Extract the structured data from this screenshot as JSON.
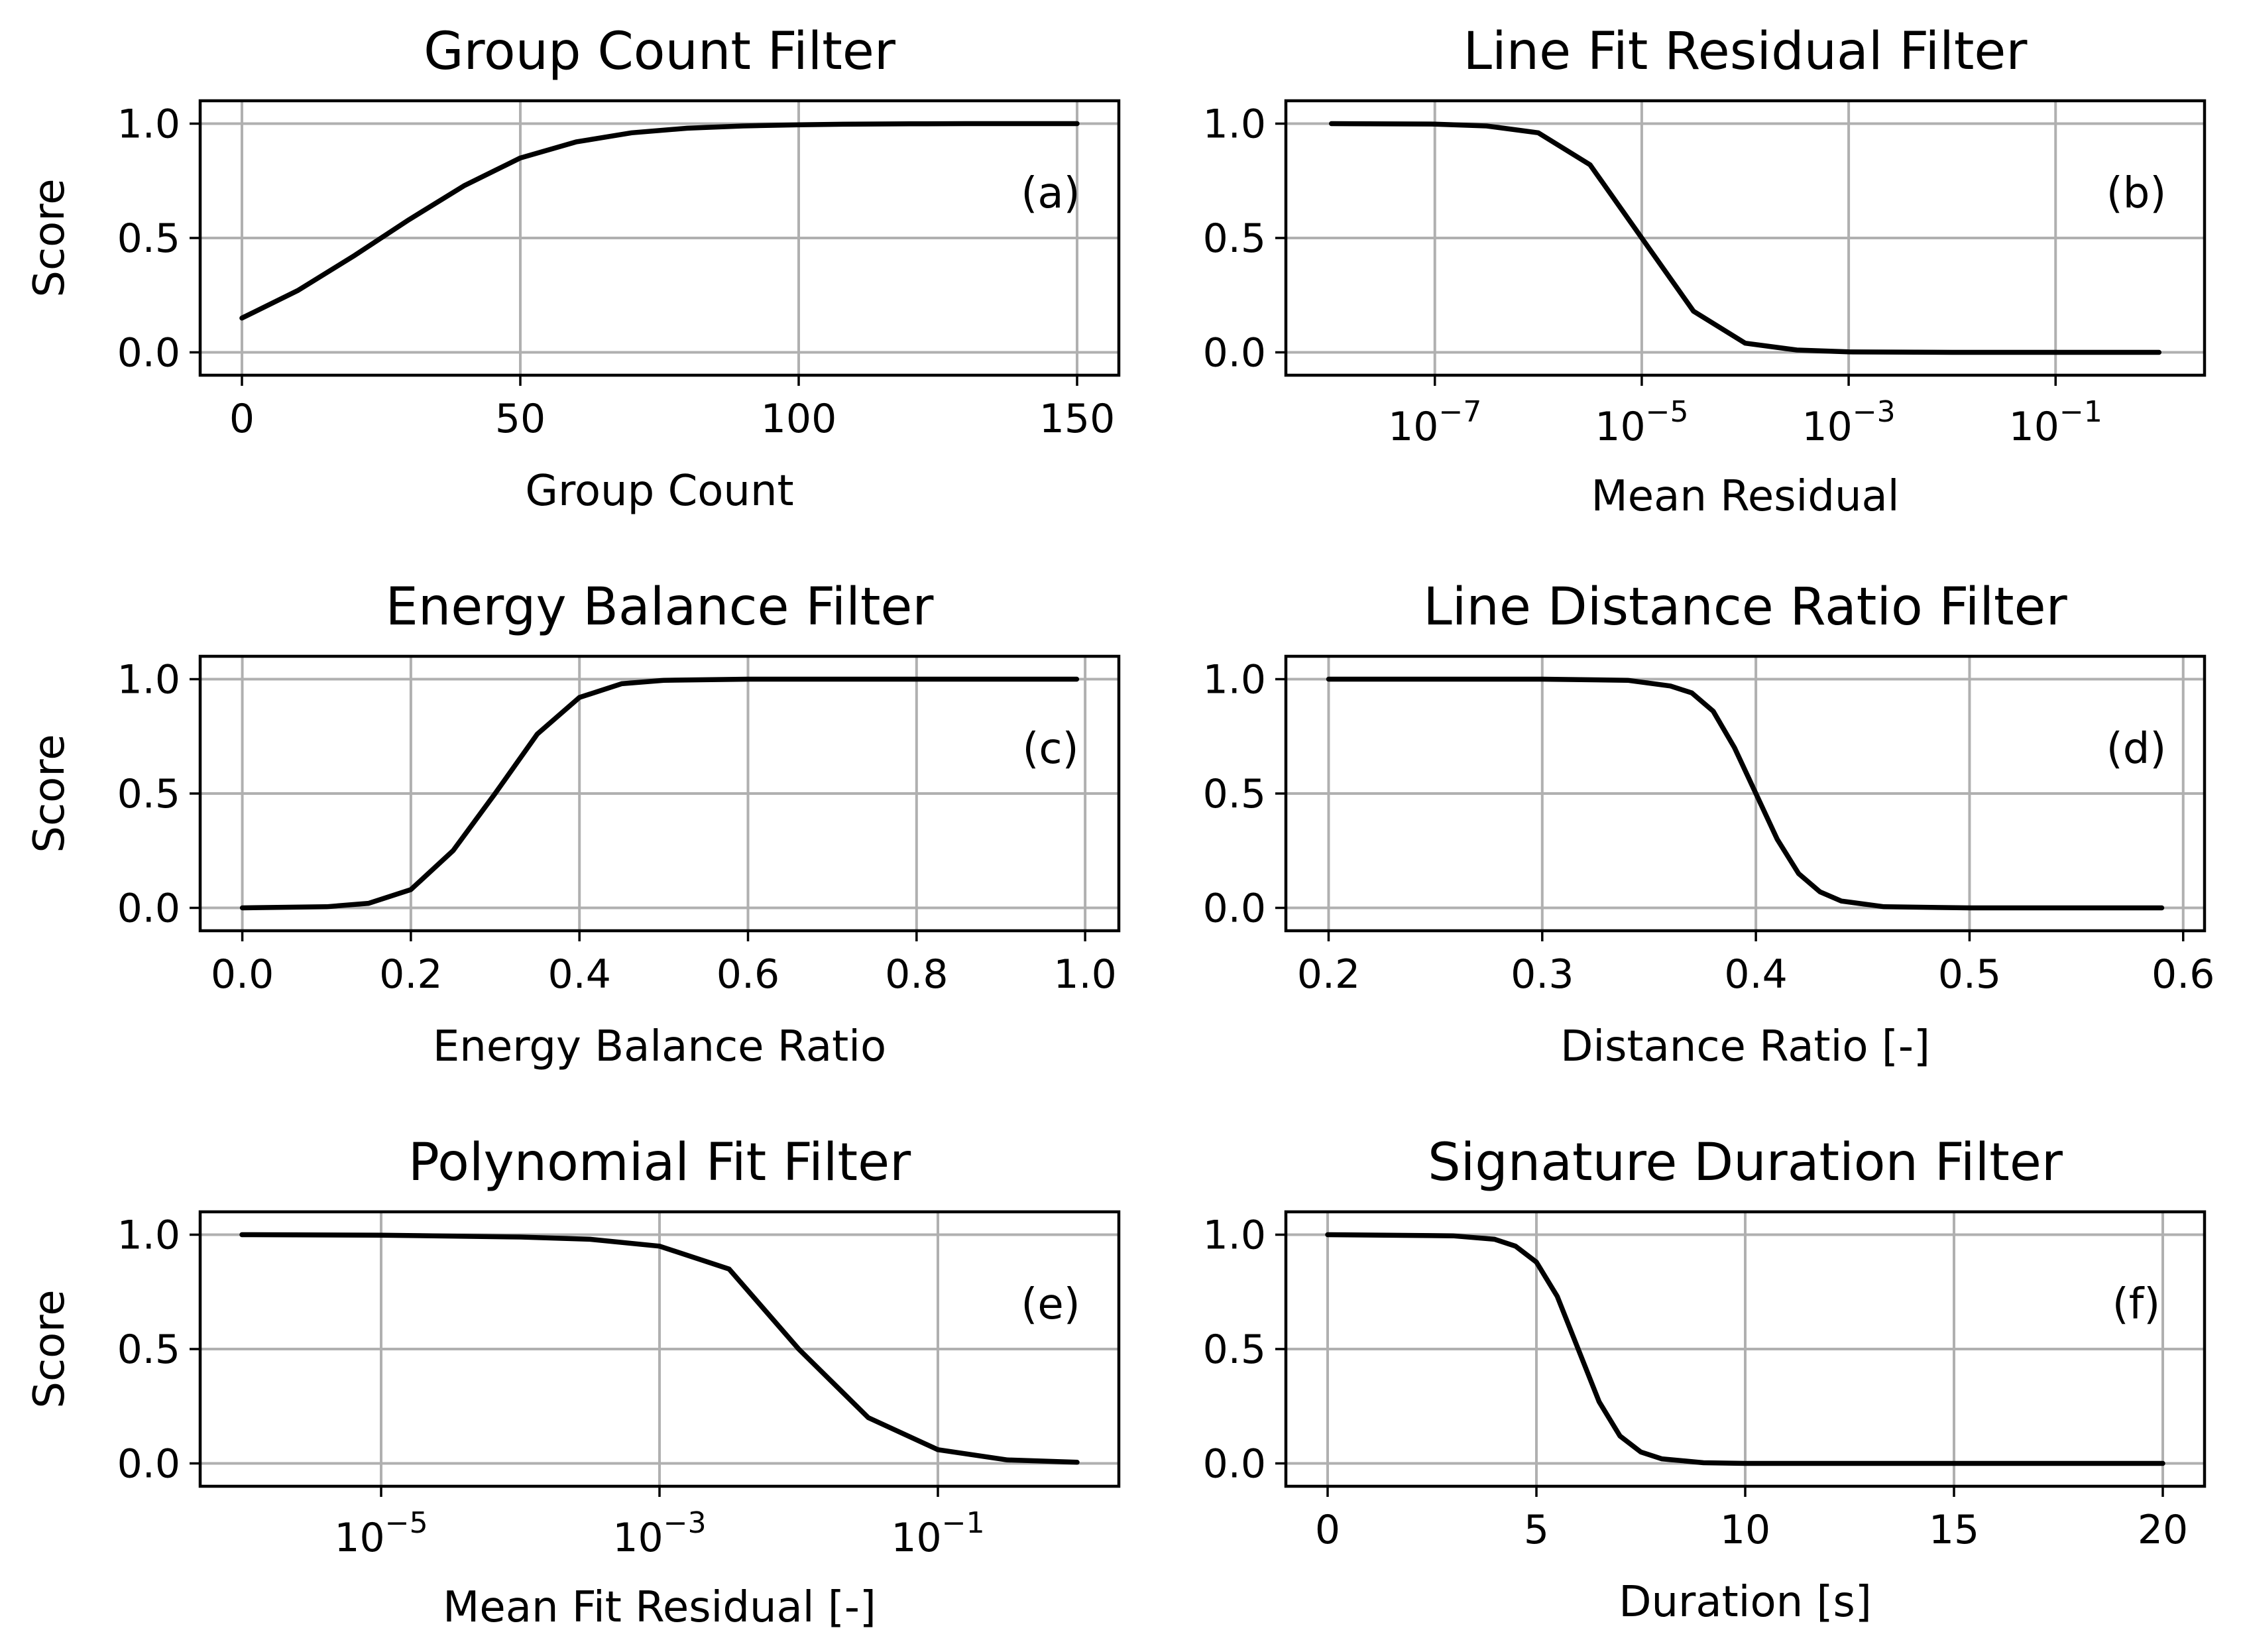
{
  "figure": {
    "background": "#ffffff",
    "curve_color": "#000000",
    "grid_color": "#b0b0b0"
  },
  "chart_data": [
    {
      "id": "a",
      "panel_label": "(a)",
      "type": "line",
      "xscale": "linear",
      "title": "Group Count Filter",
      "xlabel": "Group Count",
      "ylabel": "Score",
      "xlim": [
        -7.5,
        157.5
      ],
      "ylim": [
        -0.1,
        1.1
      ],
      "xticks": [
        0,
        50,
        100,
        150
      ],
      "xtick_labels": [
        "0",
        "50",
        "100",
        "150"
      ],
      "yticks": [
        0,
        0.5,
        1
      ],
      "ytick_labels": [
        "0.0",
        "0.5",
        "1.0"
      ],
      "grid": true,
      "legend": "none",
      "series": [
        {
          "name": "score",
          "x": [
            0,
            10,
            20,
            25,
            30,
            40,
            50,
            60,
            70,
            80,
            90,
            100,
            110,
            120,
            130,
            140,
            150
          ],
          "y": [
            0.15,
            0.27,
            0.42,
            0.5,
            0.58,
            0.73,
            0.85,
            0.92,
            0.96,
            0.98,
            0.99,
            0.995,
            0.998,
            0.999,
            1.0,
            1.0,
            1.0
          ]
        }
      ]
    },
    {
      "id": "b",
      "panel_label": "(b)",
      "type": "line",
      "xscale": "log",
      "title": "Line Fit Residual Filter",
      "xlabel": "Mean Residual",
      "ylabel": "",
      "xlim_log10": [
        -8.44,
        0.44
      ],
      "ylim": [
        -0.1,
        1.1
      ],
      "xticks_log10": [
        -7,
        -5,
        -3,
        -1
      ],
      "xtick_labels": [
        "10",
        "10",
        "10",
        "10"
      ],
      "xtick_exponents": [
        "−7",
        "−5",
        "−3",
        "−1"
      ],
      "yticks": [
        0,
        0.5,
        1
      ],
      "ytick_labels": [
        "0.0",
        "0.5",
        "1.0"
      ],
      "grid": true,
      "legend": "none",
      "series": [
        {
          "name": "score",
          "x_log10": [
            -8,
            -7,
            -6.5,
            -6,
            -5.5,
            -5,
            -4.5,
            -4,
            -3.5,
            -3,
            -2,
            -1,
            0
          ],
          "y": [
            1.0,
            0.998,
            0.99,
            0.96,
            0.82,
            0.5,
            0.18,
            0.04,
            0.01,
            0.002,
            0.0,
            0.0,
            0.0
          ]
        }
      ]
    },
    {
      "id": "c",
      "panel_label": "(c)",
      "type": "line",
      "xscale": "linear",
      "title": "Energy Balance Filter",
      "xlabel": "Energy Balance Ratio",
      "ylabel": "Score",
      "xlim": [
        -0.05,
        1.04
      ],
      "ylim": [
        -0.1,
        1.1
      ],
      "xticks": [
        0,
        0.2,
        0.4,
        0.6,
        0.8,
        1.0
      ],
      "xtick_labels": [
        "0.0",
        "0.2",
        "0.4",
        "0.6",
        "0.8",
        "1.0"
      ],
      "yticks": [
        0,
        0.5,
        1
      ],
      "ytick_labels": [
        "0.0",
        "0.5",
        "1.0"
      ],
      "grid": true,
      "legend": "none",
      "series": [
        {
          "name": "score",
          "x": [
            0,
            0.1,
            0.15,
            0.2,
            0.25,
            0.3,
            0.35,
            0.4,
            0.45,
            0.5,
            0.6,
            0.7,
            0.8,
            0.9,
            0.99
          ],
          "y": [
            0.0,
            0.005,
            0.02,
            0.08,
            0.25,
            0.5,
            0.76,
            0.92,
            0.98,
            0.995,
            1.0,
            1.0,
            1.0,
            1.0,
            1.0
          ]
        }
      ]
    },
    {
      "id": "d",
      "panel_label": "(d)",
      "type": "line",
      "xscale": "linear",
      "title": "Line Distance Ratio Filter",
      "xlabel": "Distance Ratio [-]",
      "ylabel": "",
      "xlim": [
        0.18,
        0.61
      ],
      "ylim": [
        -0.1,
        1.1
      ],
      "xticks": [
        0.2,
        0.3,
        0.4,
        0.5,
        0.6
      ],
      "xtick_labels": [
        "0.2",
        "0.3",
        "0.4",
        "0.5",
        "0.6"
      ],
      "yticks": [
        0,
        0.5,
        1
      ],
      "ytick_labels": [
        "0.0",
        "0.5",
        "1.0"
      ],
      "grid": true,
      "legend": "none",
      "series": [
        {
          "name": "score",
          "x": [
            0.2,
            0.3,
            0.34,
            0.36,
            0.37,
            0.38,
            0.39,
            0.4,
            0.41,
            0.42,
            0.43,
            0.44,
            0.46,
            0.5,
            0.59
          ],
          "y": [
            1.0,
            1.0,
            0.995,
            0.97,
            0.94,
            0.86,
            0.7,
            0.5,
            0.3,
            0.15,
            0.07,
            0.03,
            0.005,
            0.0,
            0.0
          ]
        }
      ]
    },
    {
      "id": "e",
      "panel_label": "(e)",
      "type": "line",
      "xscale": "log",
      "title": "Polynomial Fit Filter",
      "xlabel": "Mean Fit Residual [-]",
      "ylabel": "Score",
      "xlim_log10": [
        -6.3,
        0.3
      ],
      "ylim": [
        -0.1,
        1.1
      ],
      "xticks_log10": [
        -5,
        -3,
        -1
      ],
      "xtick_labels": [
        "10",
        "10",
        "10"
      ],
      "xtick_exponents": [
        "−5",
        "−3",
        "−1"
      ],
      "yticks": [
        0,
        0.5,
        1
      ],
      "ytick_labels": [
        "0.0",
        "0.5",
        "1.0"
      ],
      "grid": true,
      "legend": "none",
      "series": [
        {
          "name": "score",
          "x_log10": [
            -6,
            -5,
            -4,
            -3.5,
            -3,
            -2.5,
            -2,
            -1.5,
            -1,
            -0.5,
            0
          ],
          "y": [
            1.0,
            0.998,
            0.99,
            0.98,
            0.95,
            0.85,
            0.5,
            0.2,
            0.06,
            0.015,
            0.005
          ]
        }
      ]
    },
    {
      "id": "f",
      "panel_label": "(f)",
      "type": "line",
      "xscale": "linear",
      "title": "Signature Duration Filter",
      "xlabel": "Duration [s]",
      "ylabel": "",
      "xlim": [
        -1.0,
        21.0
      ],
      "ylim": [
        -0.1,
        1.1
      ],
      "xticks": [
        0,
        5,
        10,
        15,
        20
      ],
      "xtick_labels": [
        "0",
        "5",
        "10",
        "15",
        "20"
      ],
      "yticks": [
        0,
        0.5,
        1
      ],
      "ytick_labels": [
        "0.0",
        "0.5",
        "1.0"
      ],
      "grid": true,
      "legend": "none",
      "series": [
        {
          "name": "score",
          "x": [
            0,
            3,
            4,
            4.5,
            5,
            5.5,
            6,
            6.5,
            7,
            7.5,
            8,
            9,
            10,
            15,
            20
          ],
          "y": [
            1.0,
            0.995,
            0.98,
            0.95,
            0.88,
            0.73,
            0.5,
            0.27,
            0.12,
            0.05,
            0.02,
            0.003,
            0.0,
            0.0,
            0.0
          ]
        }
      ]
    }
  ]
}
